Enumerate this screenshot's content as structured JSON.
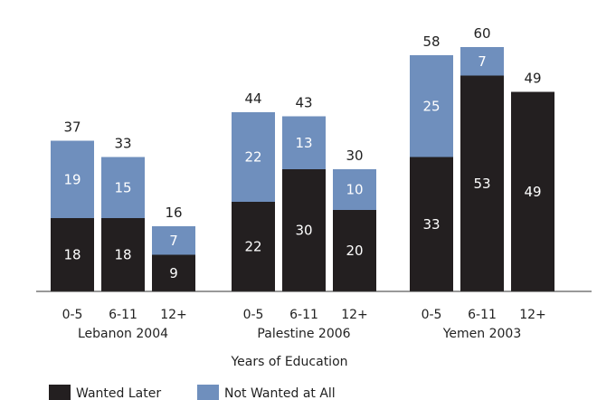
{
  "chart_data": {
    "type": "bar",
    "stacked": true,
    "xlabel": "Years of Education",
    "groups": [
      {
        "name": "Lebanon 2004",
        "categories": [
          "0-5",
          "6-11",
          "12+"
        ]
      },
      {
        "name": "Palestine 2006",
        "categories": [
          "0-5",
          "6-11",
          "12+"
        ]
      },
      {
        "name": "Yemen 2003",
        "categories": [
          "0-5",
          "6-11",
          "12+"
        ]
      }
    ],
    "series": [
      {
        "name": "Wanted Later",
        "color": "#231f20",
        "values": [
          18,
          18,
          9,
          22,
          30,
          20,
          33,
          53,
          49
        ]
      },
      {
        "name": "Not Wanted at All",
        "color": "#6f8fbd",
        "values": [
          19,
          15,
          7,
          22,
          13,
          10,
          25,
          7,
          0
        ]
      }
    ],
    "totals": [
      37,
      33,
      16,
      44,
      43,
      30,
      58,
      60,
      49
    ],
    "legend_position": "bottom-left",
    "grid": false
  }
}
